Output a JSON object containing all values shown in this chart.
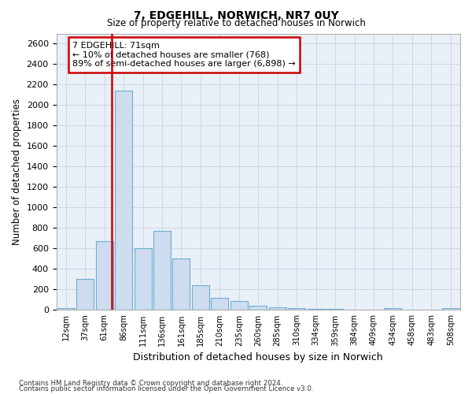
{
  "title": "7, EDGEHILL, NORWICH, NR7 0UY",
  "subtitle": "Size of property relative to detached houses in Norwich",
  "xlabel": "Distribution of detached houses by size in Norwich",
  "ylabel": "Number of detached properties",
  "categories": [
    "12sqm",
    "37sqm",
    "61sqm",
    "86sqm",
    "111sqm",
    "136sqm",
    "161sqm",
    "185sqm",
    "210sqm",
    "235sqm",
    "260sqm",
    "285sqm",
    "310sqm",
    "334sqm",
    "359sqm",
    "384sqm",
    "409sqm",
    "434sqm",
    "458sqm",
    "483sqm",
    "508sqm"
  ],
  "values": [
    20,
    300,
    670,
    2140,
    600,
    770,
    500,
    245,
    120,
    90,
    40,
    25,
    15,
    8,
    8,
    5,
    3,
    15,
    3,
    3,
    20
  ],
  "bar_color": "#cddcee",
  "bar_edge_color": "#6baed6",
  "vline_color": "#cc0000",
  "annotation_text": "7 EDGEHILL: 71sqm\n← 10% of detached houses are smaller (768)\n89% of semi-detached houses are larger (6,898) →",
  "annotation_box_color": "#cc0000",
  "ylim": [
    0,
    2700
  ],
  "yticks": [
    0,
    200,
    400,
    600,
    800,
    1000,
    1200,
    1400,
    1600,
    1800,
    2000,
    2200,
    2400,
    2600
  ],
  "footer1": "Contains HM Land Registry data © Crown copyright and database right 2024.",
  "footer2": "Contains public sector information licensed under the Open Government Licence v3.0.",
  "bg_color": "#ffffff",
  "plot_bg_color": "#eaf0f8",
  "grid_color": "#c8d4e0"
}
